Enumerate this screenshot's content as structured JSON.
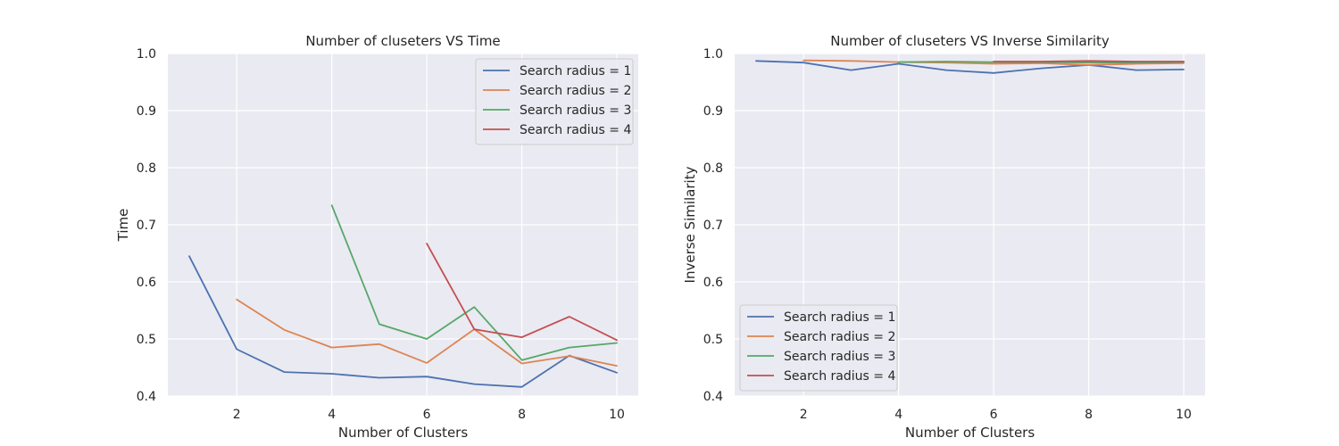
{
  "colors": {
    "background": "#eaeaf2",
    "grid": "#ffffff",
    "text": "#262626",
    "series": [
      "#4c72b0",
      "#dd8452",
      "#55a868",
      "#c44e52"
    ]
  },
  "chart_data": [
    {
      "type": "line",
      "title": "Number of cluseters VS Time",
      "xlabel": "Number of Clusters",
      "ylabel": "Time",
      "xlim": [
        0.55,
        10.45
      ],
      "ylim": [
        0.4,
        1.0
      ],
      "xticks": [
        2,
        4,
        6,
        8,
        10
      ],
      "yticks": [
        0.4,
        0.5,
        0.6,
        0.7,
        0.8,
        0.9,
        1.0
      ],
      "xtick_labels": [
        "2",
        "4",
        "6",
        "8",
        "10"
      ],
      "ytick_labels": [
        "0.4",
        "0.5",
        "0.6",
        "0.7",
        "0.8",
        "0.9",
        "1.0"
      ],
      "grid": true,
      "legend_position": "top-right",
      "series": [
        {
          "name": "Search radius = 1",
          "x": [
            1,
            2,
            3,
            4,
            5,
            6,
            7,
            8,
            9,
            10
          ],
          "y": [
            0.645,
            0.482,
            0.442,
            0.439,
            0.432,
            0.434,
            0.421,
            0.416,
            0.471,
            0.441
          ]
        },
        {
          "name": "Search radius = 2",
          "x": [
            2,
            3,
            4,
            5,
            6,
            7,
            8,
            9,
            10
          ],
          "y": [
            0.569,
            0.516,
            0.485,
            0.491,
            0.458,
            0.517,
            0.457,
            0.47,
            0.453
          ]
        },
        {
          "name": "Search radius = 3",
          "x": [
            4,
            5,
            6,
            7,
            8,
            9,
            10
          ],
          "y": [
            0.734,
            0.526,
            0.5,
            0.556,
            0.463,
            0.485,
            0.493
          ]
        },
        {
          "name": "Search radius = 4",
          "x": [
            6,
            7,
            8,
            9,
            10
          ],
          "y": [
            0.667,
            0.517,
            0.503,
            0.539,
            0.498
          ]
        }
      ]
    },
    {
      "type": "line",
      "title": "Number of cluseters VS Inverse Similarity",
      "xlabel": "Number of Clusters",
      "ylabel": "Inverse Similarity",
      "xlim": [
        0.55,
        10.45
      ],
      "ylim": [
        0.4,
        1.0
      ],
      "xticks": [
        2,
        4,
        6,
        8,
        10
      ],
      "yticks": [
        0.4,
        0.5,
        0.6,
        0.7,
        0.8,
        0.9,
        1.0
      ],
      "xtick_labels": [
        "2",
        "4",
        "6",
        "8",
        "10"
      ],
      "ytick_labels": [
        "0.4",
        "0.5",
        "0.6",
        "0.7",
        "0.8",
        "0.9",
        "1.0"
      ],
      "grid": true,
      "legend_position": "bottom-left",
      "series": [
        {
          "name": "Search radius = 1",
          "x": [
            1,
            2,
            3,
            4,
            5,
            6,
            7,
            8,
            9,
            10
          ],
          "y": [
            0.987,
            0.984,
            0.971,
            0.982,
            0.971,
            0.966,
            0.974,
            0.98,
            0.971,
            0.972
          ]
        },
        {
          "name": "Search radius = 2",
          "x": [
            2,
            3,
            4,
            5,
            6,
            7,
            8,
            9,
            10
          ],
          "y": [
            0.988,
            0.987,
            0.985,
            0.984,
            0.982,
            0.983,
            0.98,
            0.982,
            0.983
          ]
        },
        {
          "name": "Search radius = 3",
          "x": [
            4,
            5,
            6,
            7,
            8,
            9,
            10
          ],
          "y": [
            0.985,
            0.986,
            0.985,
            0.985,
            0.984,
            0.984,
            0.985
          ]
        },
        {
          "name": "Search radius = 4",
          "x": [
            6,
            7,
            8,
            9,
            10
          ],
          "y": [
            0.986,
            0.986,
            0.987,
            0.986,
            0.986
          ]
        }
      ]
    }
  ]
}
